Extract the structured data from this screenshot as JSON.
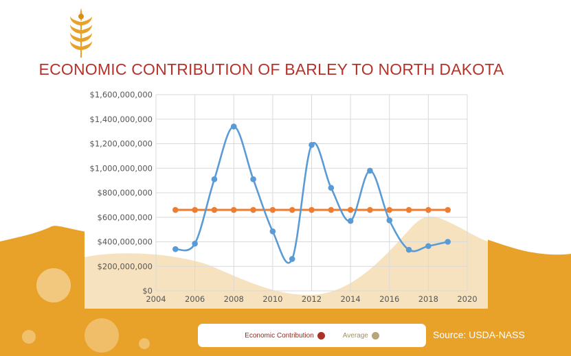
{
  "title": "ECONOMIC CONTRIBUTION OF BARLEY TO NORTH DAKOTA",
  "source": "Source: USDA-NASS",
  "legend": [
    {
      "label": "Economic Contribution",
      "color": "#a93226",
      "text_color": "#8e2a22"
    },
    {
      "label": "Average",
      "color": "#b8a67a",
      "text_color": "#a09058"
    }
  ],
  "colors": {
    "background_orange": "#e8a22a",
    "light_cream": "#f7e2c0",
    "series_blue": "#5a9bd5",
    "average_orange": "#ed7d31",
    "title_red": "#b5322a"
  },
  "icon": "wheat-icon",
  "chart_data": {
    "type": "line",
    "title": "ECONOMIC CONTRIBUTION OF BARLEY TO NORTH DAKOTA",
    "xlabel": "",
    "ylabel": "",
    "xlim": [
      2004,
      2020
    ],
    "ylim": [
      0,
      1600000000
    ],
    "x_ticks": [
      2004,
      2006,
      2008,
      2010,
      2012,
      2014,
      2016,
      2018,
      2020
    ],
    "x_tick_labels": [
      "2004",
      "2006",
      "2008",
      "2010",
      "2012",
      "2014",
      "2016",
      "2018",
      "2020"
    ],
    "y_ticks": [
      0,
      200000000,
      400000000,
      600000000,
      800000000,
      1000000000,
      1200000000,
      1400000000,
      1600000000
    ],
    "y_tick_labels": [
      "$0",
      "$200,000,000",
      "$400,000,000",
      "$600,000,000",
      "$800,000,000",
      "$1,000,000,000",
      "$1,200,000,000",
      "$1,400,000,000",
      "$1,600,000,000"
    ],
    "grid": true,
    "legend_position": "bottom",
    "series": [
      {
        "name": "Economic Contribution",
        "x": [
          2005,
          2006,
          2007,
          2008,
          2009,
          2010,
          2011,
          2012,
          2013,
          2014,
          2015,
          2016,
          2017,
          2018,
          2019
        ],
        "values": [
          340000000,
          385000000,
          910000000,
          1340000000,
          910000000,
          485000000,
          260000000,
          1190000000,
          840000000,
          570000000,
          980000000,
          575000000,
          335000000,
          365000000,
          400000000
        ]
      },
      {
        "name": "Average",
        "x": [
          2005,
          2006,
          2007,
          2008,
          2009,
          2010,
          2011,
          2012,
          2013,
          2014,
          2015,
          2016,
          2017,
          2018,
          2019
        ],
        "values": [
          660000000,
          660000000,
          660000000,
          660000000,
          660000000,
          660000000,
          660000000,
          660000000,
          660000000,
          660000000,
          660000000,
          660000000,
          660000000,
          660000000,
          660000000
        ]
      }
    ]
  }
}
